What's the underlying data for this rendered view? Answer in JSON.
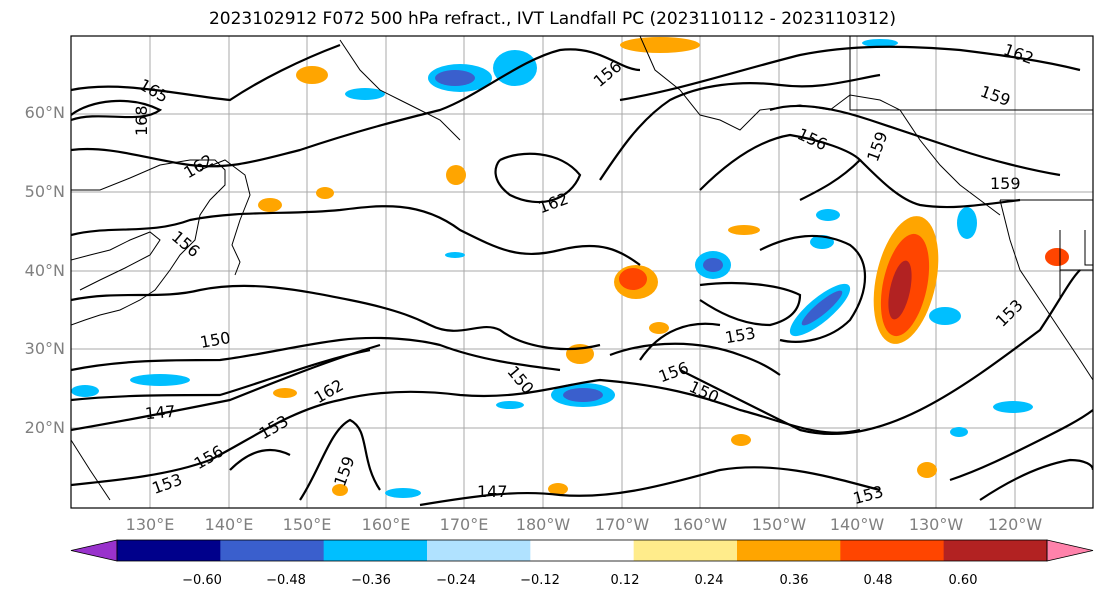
{
  "title": "2023102912 F072 500 hPa refract., IVT Landfall PC (2023110112 - 2023110312)",
  "lat_labels": [
    "60°N",
    "50°N",
    "40°N",
    "30°N",
    "20°N"
  ],
  "lon_labels": [
    "130°E",
    "140°E",
    "150°E",
    "160°E",
    "170°E",
    "180°W",
    "170°W",
    "160°W",
    "150°W",
    "140°W",
    "130°W",
    "120°W"
  ],
  "colorbar": {
    "colors": [
      "#9932cc",
      "#00008b",
      "#3a5fcd",
      "#00bfff",
      "#b0e2ff",
      "#ffffff",
      "#ffec8b",
      "#ffa500",
      "#ff4500",
      "#b22222",
      "#ff82ab"
    ],
    "ticks": [
      "−0.60",
      "−0.48",
      "−0.36",
      "−0.24",
      "−0.12",
      "0.12",
      "0.24",
      "0.36",
      "0.48",
      "0.60"
    ]
  },
  "contour_labels": [
    "165",
    "168",
    "162",
    "156",
    "150",
    "147",
    "153",
    "156",
    "153",
    "162",
    "159",
    "162",
    "156",
    "153",
    "159",
    "162",
    "159",
    "150",
    "156",
    "150",
    "147",
    "153",
    "156",
    "159",
    "153"
  ]
}
